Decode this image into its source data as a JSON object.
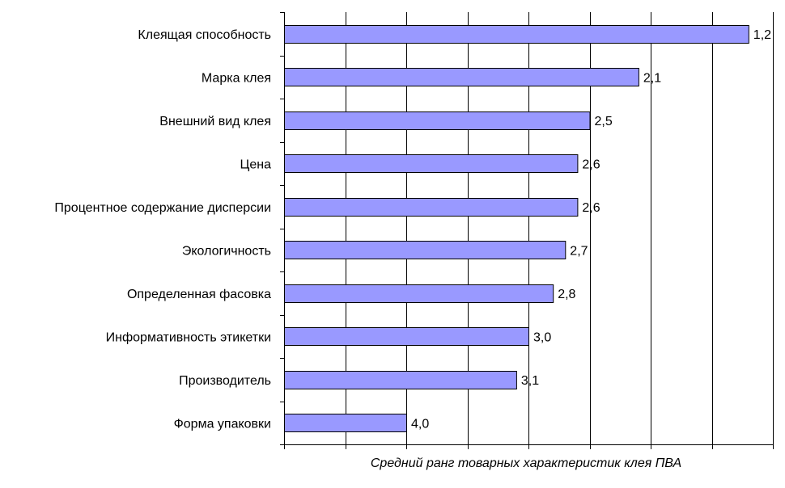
{
  "chart_data": {
    "type": "bar",
    "orientation": "horizontal",
    "categories": [
      "Клеящая способность",
      "Марка клея",
      "Внешний вид клея",
      "Цена",
      "Процентное содержание дисперсии",
      "Экологичность",
      "Определенная фасовка",
      "Информативность этикетки",
      "Производитель",
      "Форма упаковки"
    ],
    "values": [
      1.2,
      2.1,
      2.5,
      2.6,
      2.6,
      2.7,
      2.8,
      3.0,
      3.1,
      4.0
    ],
    "value_labels": [
      "1,2",
      "2,1",
      "2,5",
      "2,6",
      "2,6",
      "2,7",
      "2,8",
      "3,0",
      "3,1",
      "4,0"
    ],
    "xlabel": "Средний ранг товарных характеристик клея ПВА",
    "axis_direction": "reversed",
    "xlim": [
      5.0,
      1.0
    ],
    "grid": true,
    "colors": {
      "bar_fill": "#9999ff",
      "bar_stroke": "#000000",
      "grid": "#000000"
    }
  }
}
